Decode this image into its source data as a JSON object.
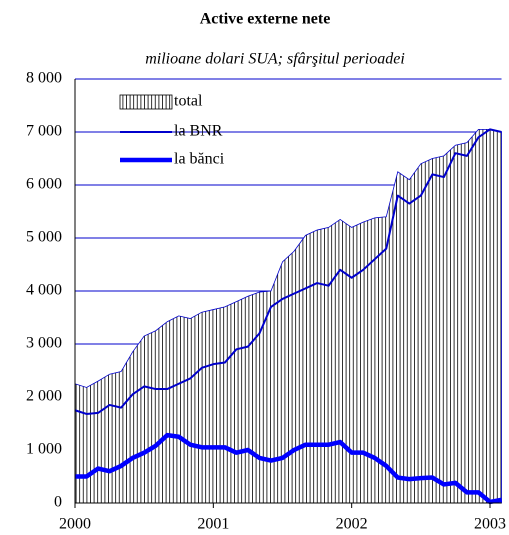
{
  "chart_data": {
    "type": "area-line",
    "title": "Active externe nete",
    "subtitle": "milioane dolari SUA; sfârşitul perioadei",
    "categories": [
      "2000",
      null,
      null,
      null,
      null,
      null,
      null,
      null,
      null,
      null,
      null,
      null,
      "2001",
      null,
      null,
      null,
      null,
      null,
      null,
      null,
      null,
      null,
      null,
      null,
      "2002",
      null,
      null,
      null,
      null,
      null,
      null,
      null,
      null,
      null,
      null,
      null,
      "2003",
      null
    ],
    "series": [
      {
        "name": "total",
        "kind": "area",
        "color": "#0000cc",
        "values": [
          2250,
          2180,
          2300,
          2430,
          2480,
          2850,
          3150,
          3250,
          3420,
          3530,
          3480,
          3600,
          3650,
          3700,
          3800,
          3900,
          3980,
          4000,
          4550,
          4750,
          5050,
          5150,
          5200,
          5350,
          5200,
          5300,
          5380,
          5400,
          6250,
          6100,
          6400,
          6500,
          6550,
          6750,
          6800,
          7050,
          7050,
          7000
        ]
      },
      {
        "name": "la BNR",
        "kind": "line",
        "color": "#0000cc",
        "values": [
          1750,
          1680,
          1700,
          1850,
          1800,
          2050,
          2200,
          2150,
          2150,
          2250,
          2350,
          2550,
          2620,
          2650,
          2900,
          2950,
          3200,
          3700,
          3850,
          3950,
          4050,
          4150,
          4100,
          4400,
          4250,
          4400,
          4600,
          4800,
          5800,
          5650,
          5800,
          6200,
          6150,
          6600,
          6550,
          6900,
          7050,
          7000
        ]
      },
      {
        "name": "la bănci",
        "kind": "thick-line",
        "color": "#0000ff",
        "values": [
          500,
          500,
          650,
          600,
          700,
          850,
          950,
          1080,
          1280,
          1250,
          1100,
          1050,
          1050,
          1050,
          950,
          1000,
          850,
          800,
          850,
          1000,
          1100,
          1100,
          1100,
          1150,
          950,
          950,
          850,
          700,
          480,
          450,
          470,
          480,
          350,
          380,
          200,
          200,
          20,
          60
        ]
      }
    ],
    "ylim": [
      0,
      8000
    ],
    "yticks": [
      0,
      {
        "value": 1000,
        "label": "1 000"
      },
      {
        "value": 2000,
        "label": "2 000"
      },
      {
        "value": 3000,
        "label": "3 000"
      },
      {
        "value": 4000,
        "label": "4 000"
      },
      {
        "value": 5000,
        "label": "5 000"
      },
      {
        "value": 6000,
        "label": "6 000"
      },
      {
        "value": 7000,
        "label": "7 000"
      },
      {
        "value": 8000,
        "label": "8 000"
      }
    ],
    "grid": true
  }
}
